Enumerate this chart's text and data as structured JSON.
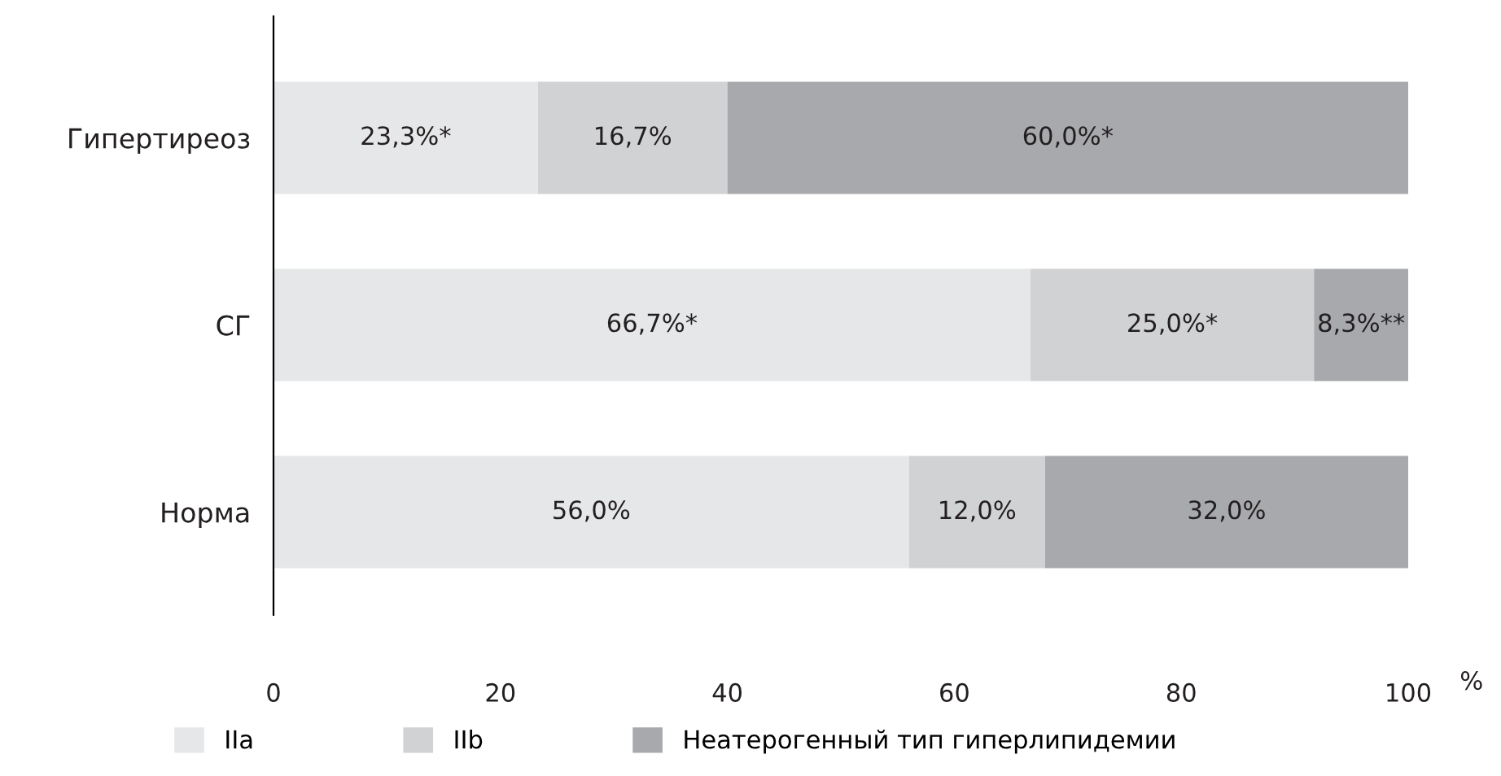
{
  "chart_data": {
    "type": "bar",
    "orientation": "horizontal",
    "stacked": true,
    "categories": [
      "Гипертиреоз",
      "СГ",
      "Норма"
    ],
    "series": [
      {
        "name": "IIa",
        "color": "#e6e7e8",
        "values": [
          23.3,
          66.7,
          56.0
        ],
        "value_labels": [
          "23,3%*",
          "66,7%*",
          "56,0%"
        ]
      },
      {
        "name": "IIb",
        "color": "#d1d2d4",
        "values": [
          16.7,
          25.0,
          12.0
        ],
        "value_labels": [
          "16,7%",
          "25,0%*",
          "12,0%"
        ]
      },
      {
        "name": "Неатерогенный тип гиперлипидемии",
        "color": "#a7a9ac",
        "values": [
          60.0,
          8.3,
          32.0
        ],
        "value_labels": [
          "60,0%*",
          "8,3%**",
          "32,0%"
        ]
      }
    ],
    "xlim": [
      0,
      100
    ],
    "xticks": [
      0,
      20,
      40,
      60,
      80,
      100
    ],
    "xlabel": "%",
    "grid": false,
    "legend": "bottom"
  }
}
